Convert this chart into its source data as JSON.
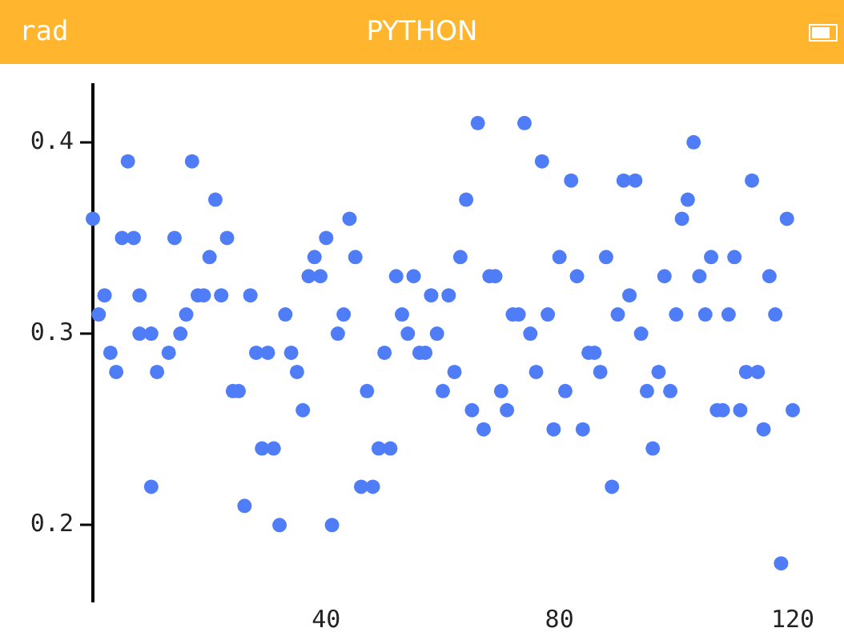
{
  "chart_data": {
    "type": "scatter",
    "title": "PYTHON",
    "annotations": [
      "rad"
    ],
    "x": [
      0,
      1,
      2,
      3,
      4,
      5,
      6,
      7,
      8,
      8,
      10,
      10,
      11,
      13,
      14,
      15,
      16,
      17,
      18,
      19,
      20,
      21,
      22,
      23,
      24,
      25,
      26,
      27,
      28,
      29,
      30,
      31,
      32,
      33,
      34,
      35,
      36,
      37,
      38,
      39,
      40,
      41,
      42,
      43,
      44,
      45,
      46,
      47,
      48,
      49,
      50,
      51,
      52,
      53,
      54,
      55,
      56,
      57,
      58,
      59,
      60,
      61,
      62,
      63,
      64,
      65,
      66,
      67,
      68,
      69,
      70,
      71,
      72,
      73,
      74,
      75,
      76,
      77,
      78,
      79,
      80,
      81,
      82,
      83,
      84,
      85,
      86,
      87,
      88,
      89,
      90,
      91,
      92,
      93,
      94,
      95,
      96,
      97,
      98,
      99,
      100,
      101,
      102,
      103,
      104,
      105,
      106,
      107,
      108,
      109,
      110,
      111,
      112,
      113,
      114,
      115,
      116,
      117,
      118,
      119,
      120
    ],
    "series": [
      {
        "color": "#4f7cf7",
        "values": [
          0.36,
          0.31,
          0.32,
          0.29,
          0.28,
          0.35,
          0.39,
          0.35,
          0.32,
          0.3,
          0.22,
          0.3,
          0.28,
          0.29,
          0.35,
          0.3,
          0.31,
          0.39,
          0.32,
          0.32,
          0.34,
          0.37,
          0.32,
          0.35,
          0.27,
          0.27,
          0.21,
          0.32,
          0.29,
          0.24,
          0.29,
          0.24,
          0.2,
          0.31,
          0.29,
          0.28,
          0.26,
          0.33,
          0.34,
          0.33,
          0.35,
          0.2,
          0.3,
          0.31,
          0.36,
          0.34,
          0.22,
          0.27,
          0.22,
          0.24,
          0.29,
          0.24,
          0.33,
          0.31,
          0.3,
          0.33,
          0.29,
          0.29,
          0.32,
          0.3,
          0.27,
          0.32,
          0.28,
          0.34,
          0.37,
          0.26,
          0.41,
          0.25,
          0.33,
          0.33,
          0.27,
          0.26,
          0.31,
          0.31,
          0.41,
          0.3,
          0.28,
          0.39,
          0.31,
          0.25,
          0.34,
          0.27,
          0.38,
          0.33,
          0.25,
          0.29,
          0.29,
          0.28,
          0.34,
          0.22,
          0.31,
          0.38,
          0.32,
          0.38,
          0.3,
          0.27,
          0.24,
          0.28,
          0.33,
          0.27,
          0.31,
          0.36,
          0.37,
          0.4,
          0.33,
          0.31,
          0.34,
          0.26,
          0.26,
          0.31,
          0.34,
          0.26,
          0.28,
          0.38,
          0.28,
          0.25,
          0.33,
          0.31,
          0.18,
          0.36,
          0.26
        ]
      }
    ],
    "xlim": [
      0,
      120
    ],
    "xticks": [
      40,
      80,
      120
    ],
    "ylim": [
      0.16,
      0.43
    ],
    "yticks": [
      0.2,
      0.3,
      0.4
    ],
    "grid": false,
    "legend": false,
    "marker": "circle"
  }
}
